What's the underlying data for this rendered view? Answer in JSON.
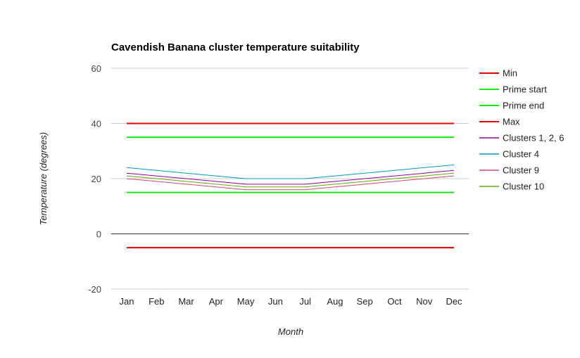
{
  "chart_data": {
    "type": "line",
    "title": "Cavendish Banana cluster temperature suitability",
    "xlabel": "Month",
    "ylabel": "Temperature (degrees)",
    "ylim": [
      -20,
      60
    ],
    "yticks": [
      -20,
      0,
      20,
      40,
      60
    ],
    "grid": true,
    "legend_position": "right",
    "categories": [
      "Jan",
      "Feb",
      "Mar",
      "Apr",
      "May",
      "Jun",
      "Jul",
      "Aug",
      "Sep",
      "Oct",
      "Nov",
      "Dec"
    ],
    "series": [
      {
        "name": "Min",
        "color": "#ee0000",
        "thick": true,
        "values": [
          -5,
          -5,
          -5,
          -5,
          -5,
          -5,
          -5,
          -5,
          -5,
          -5,
          -5,
          -5
        ]
      },
      {
        "name": "Prime start",
        "color": "#11ee11",
        "thick": true,
        "values": [
          15,
          15,
          15,
          15,
          15,
          15,
          15,
          15,
          15,
          15,
          15,
          15
        ]
      },
      {
        "name": "Prime end",
        "color": "#11ee11",
        "thick": true,
        "values": [
          35,
          35,
          35,
          35,
          35,
          35,
          35,
          35,
          35,
          35,
          35,
          35
        ]
      },
      {
        "name": "Max",
        "color": "#ee0000",
        "thick": true,
        "values": [
          40,
          40,
          40,
          40,
          40,
          40,
          40,
          40,
          40,
          40,
          40,
          40
        ]
      },
      {
        "name": "Clusters 1, 2, 6",
        "color": "#990099",
        "thick": false,
        "values": [
          22,
          21,
          20,
          19,
          18,
          18,
          18,
          19,
          20,
          21,
          22,
          23
        ]
      },
      {
        "name": "Cluster 4",
        "color": "#0099c6",
        "thick": false,
        "values": [
          24,
          23,
          22,
          21,
          20,
          20,
          20,
          21,
          22,
          23,
          24,
          25
        ]
      },
      {
        "name": "Cluster 9",
        "color": "#dd4477",
        "thick": false,
        "values": [
          20,
          19,
          18,
          17,
          16,
          16,
          16,
          17,
          18,
          19,
          20,
          21
        ]
      },
      {
        "name": "Cluster 10",
        "color": "#66aa00",
        "thick": false,
        "values": [
          21,
          20,
          19,
          18,
          17,
          17,
          17,
          18,
          19,
          20,
          21,
          22
        ]
      }
    ]
  }
}
